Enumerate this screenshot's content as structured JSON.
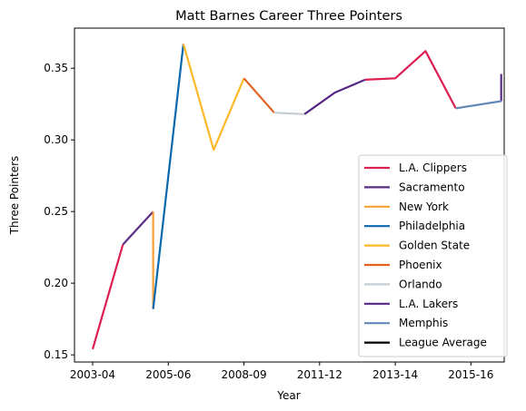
{
  "chart_data": {
    "type": "line",
    "title": "Matt Barnes Career Three Pointers",
    "xlabel": "Year",
    "ylabel": "Three Pointers",
    "xlim": [
      -0.6,
      13.6
    ],
    "ylim": [
      0.145,
      0.378
    ],
    "x_ticks": [
      {
        "x": 0,
        "label": "2003-04"
      },
      {
        "x": 2.5,
        "label": "2005-06"
      },
      {
        "x": 5,
        "label": "2008-09"
      },
      {
        "x": 7.5,
        "label": "2011-12"
      },
      {
        "x": 10,
        "label": "2013-14"
      },
      {
        "x": 12.5,
        "label": "2015-16"
      }
    ],
    "y_ticks": [
      {
        "y": 0.15,
        "label": "0.15"
      },
      {
        "y": 0.2,
        "label": "0.20"
      },
      {
        "y": 0.25,
        "label": "0.25"
      },
      {
        "y": 0.3,
        "label": "0.30"
      },
      {
        "y": 0.35,
        "label": "0.35"
      }
    ],
    "grid": false,
    "legend_position": "bottom-right",
    "series": [
      {
        "name": "L.A. Clippers",
        "color": "#dc1e51",
        "segments": [
          [
            [
              0,
              0.154
            ],
            [
              1,
              0.227
            ]
          ],
          [
            [
              9,
              0.342
            ],
            [
              10,
              0.343
            ],
            [
              11,
              0.362
            ],
            [
              12,
              0.322
            ]
          ]
        ]
      },
      {
        "name": "Sacramento",
        "color": "#5b2c83",
        "segments": [
          [
            [
              1,
              0.227
            ],
            [
              2,
              0.25
            ]
          ],
          [
            [
              13.5,
              0.327
            ],
            [
              13.5,
              0.346
            ]
          ]
        ]
      },
      {
        "name": "New York",
        "color": "#f5a030",
        "segments": [
          [
            [
              2,
              0.25
            ],
            [
              2,
              0.182
            ]
          ]
        ]
      },
      {
        "name": "Philadelphia",
        "color": "#0868ac",
        "segments": [
          [
            [
              2,
              0.182
            ],
            [
              3,
              0.367
            ]
          ]
        ]
      },
      {
        "name": "Golden State",
        "color": "#fdb927",
        "segments": [
          [
            [
              3,
              0.367
            ],
            [
              4,
              0.293
            ],
            [
              5,
              0.343
            ]
          ]
        ]
      },
      {
        "name": "Phoenix",
        "color": "#e56020",
        "segments": [
          [
            [
              5,
              0.343
            ],
            [
              6,
              0.319
            ]
          ]
        ]
      },
      {
        "name": "Orlando",
        "color": "#c4ced3",
        "segments": [
          [
            [
              6,
              0.319
            ],
            [
              7,
              0.318
            ]
          ]
        ]
      },
      {
        "name": "L.A. Lakers",
        "color": "#552583",
        "segments": [
          [
            [
              7,
              0.318
            ],
            [
              8,
              0.333
            ],
            [
              9,
              0.342
            ]
          ]
        ]
      },
      {
        "name": "Memphis",
        "color": "#6189b9",
        "segments": [
          [
            [
              12,
              0.322
            ],
            [
              13.5,
              0.327
            ]
          ]
        ]
      },
      {
        "name": "League Average",
        "color": "#000000",
        "segments": []
      }
    ]
  }
}
